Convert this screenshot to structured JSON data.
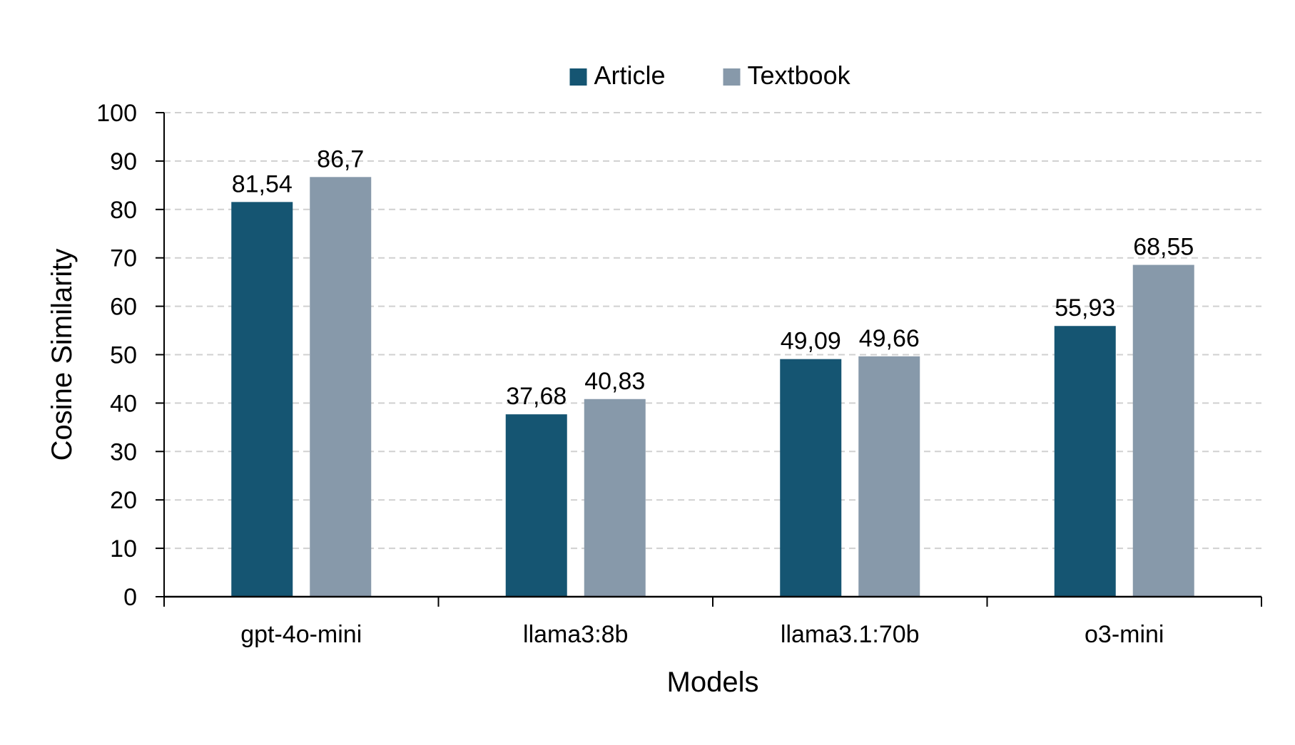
{
  "chart_data": {
    "type": "bar",
    "title": "",
    "xlabel": "Models",
    "ylabel": "Cosine Similarity",
    "categories": [
      "gpt-4o-mini",
      "llama3:8b",
      "llama3.1:70b",
      "o3-mini"
    ],
    "series": [
      {
        "name": "Article",
        "color": "#155572",
        "values": [
          81.54,
          37.68,
          49.09,
          55.93
        ],
        "labels": [
          "81,54",
          "37,68",
          "49,09",
          "55,93"
        ]
      },
      {
        "name": "Textbook",
        "color": "#8799AA",
        "values": [
          86.7,
          40.83,
          49.66,
          68.55
        ],
        "labels": [
          "86,7",
          "40,83",
          "49,66",
          "68,55"
        ]
      }
    ],
    "ylim": [
      0,
      100
    ],
    "yticks": [
      0,
      10,
      20,
      30,
      40,
      50,
      60,
      70,
      80,
      90,
      100
    ],
    "grid": true,
    "legend_position": "top-center"
  }
}
